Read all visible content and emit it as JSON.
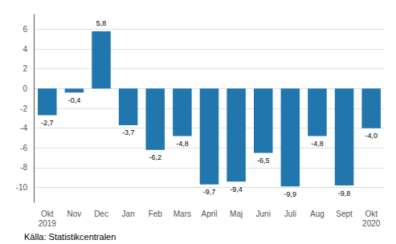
{
  "chart_data": {
    "type": "bar",
    "categories": [
      "Okt\n2019",
      "Nov",
      "Dec",
      "Jan",
      "Feb",
      "Mars",
      "April",
      "Maj",
      "Juni",
      "Juli",
      "Aug",
      "Sept",
      "Okt\n2020"
    ],
    "values": [
      -2.7,
      -0.4,
      5.8,
      -3.7,
      -6.2,
      -4.8,
      -9.7,
      -9.4,
      -6.5,
      -9.9,
      -4.8,
      -9.8,
      -4.0
    ],
    "value_labels": [
      "-2,7",
      "-0,4",
      "5,8",
      "-3,7",
      "-6,2",
      "-4,8",
      "-9,7",
      "-9,4",
      "-6,5",
      "-9,9",
      "-4,8",
      "-9,8",
      "-4,0"
    ],
    "data_labels": true,
    "color": "#2176ae",
    "ylim": [
      -11.5,
      7.5
    ],
    "yticks": [
      -10,
      -8,
      -6,
      -4,
      -2,
      0,
      2,
      4,
      6
    ],
    "grid": true,
    "annotations": [
      "Källa: Statistikcentralen"
    ]
  }
}
